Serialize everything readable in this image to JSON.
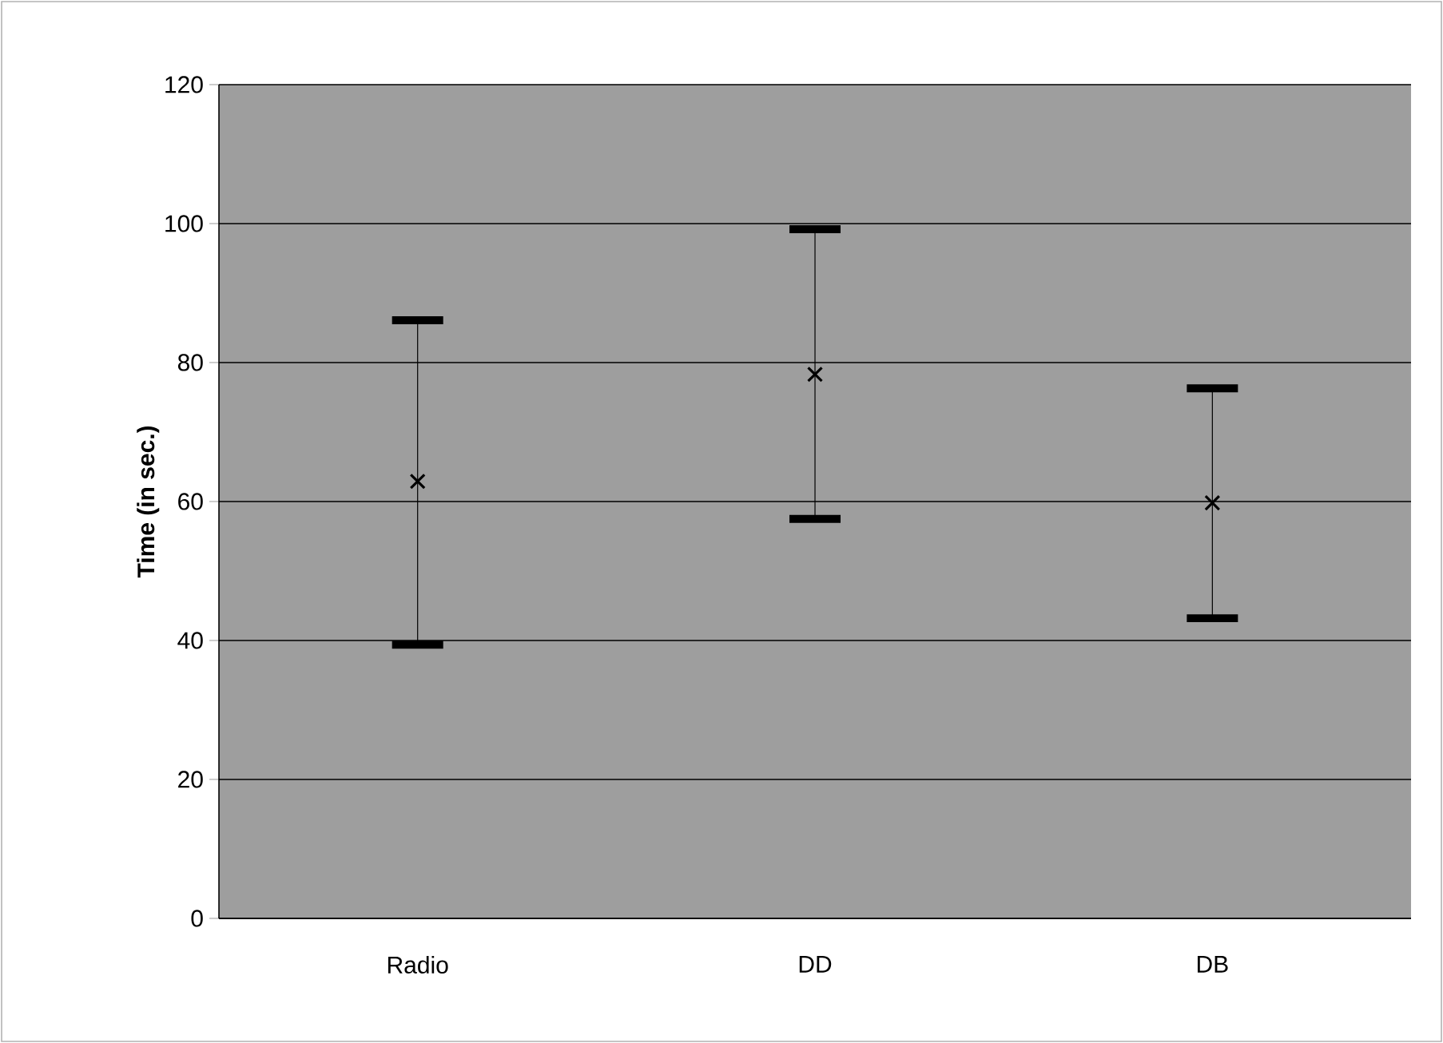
{
  "chart_data": {
    "type": "scatter",
    "ylabel": "Time (in sec.)",
    "categories": [
      "Radio",
      "DD",
      "DB"
    ],
    "series": [
      {
        "color": "#000000",
        "values": [
          62.9,
          78.3,
          59.8
        ],
        "errors": [
          [
            39.4,
            86.1
          ],
          [
            57.5,
            99.2
          ],
          [
            43.2,
            76.3
          ]
        ]
      }
    ],
    "ylim": [
      0,
      120
    ],
    "yticks": [
      0,
      20,
      40,
      60,
      80,
      100,
      120
    ],
    "grid": "y",
    "marker": "cross"
  }
}
